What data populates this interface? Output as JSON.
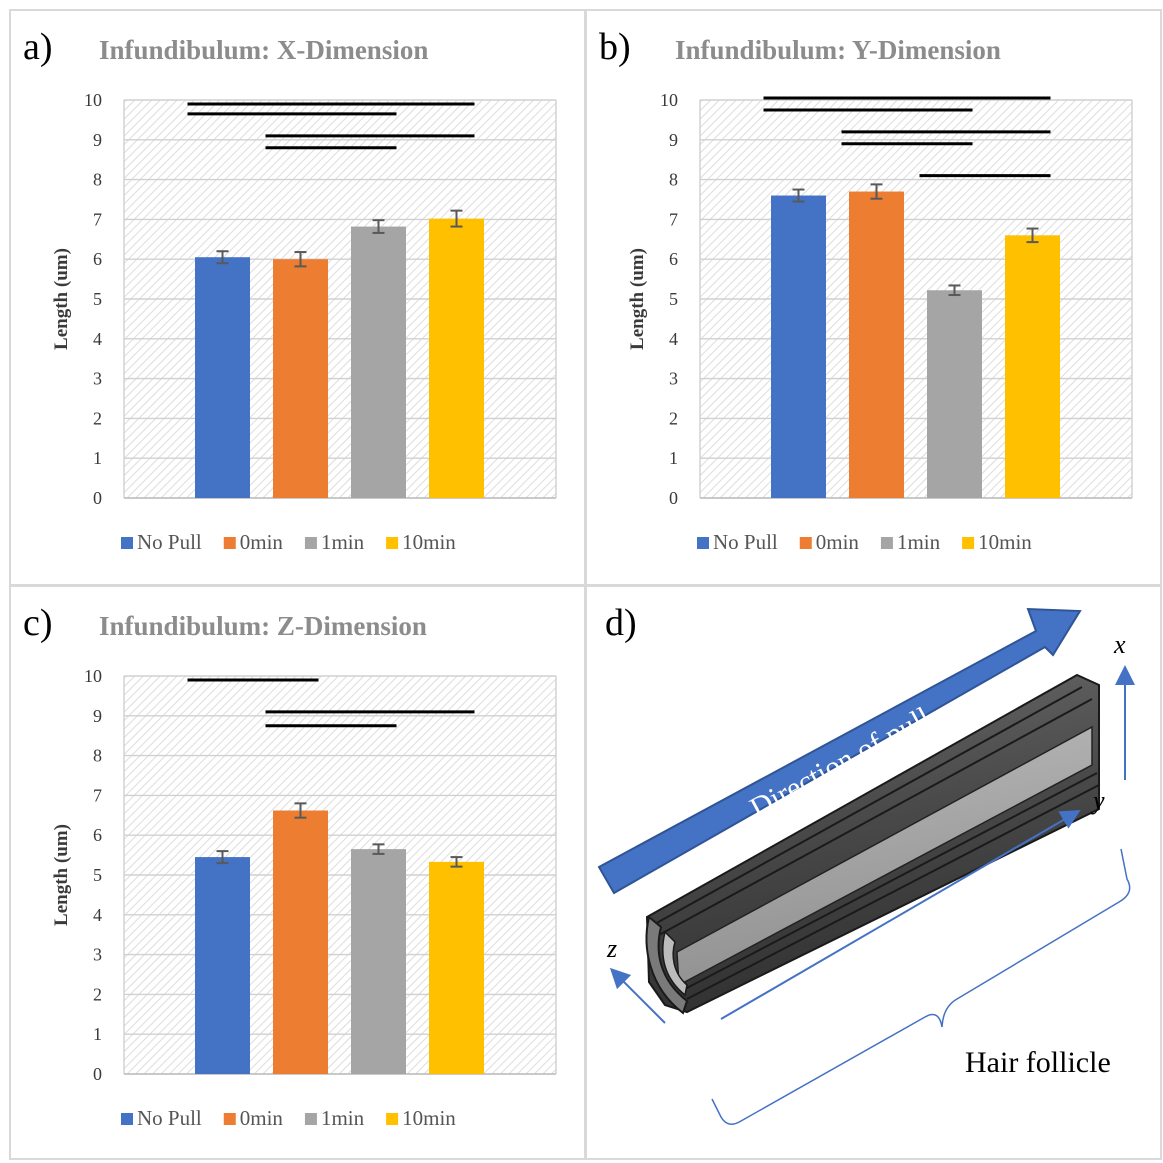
{
  "chart_data": [
    {
      "type": "bar",
      "panel_label": "a)",
      "title": "Infundibulum: X-Dimension",
      "ylabel": "Length (um)",
      "ylim": [
        0,
        10
      ],
      "yticks": [
        "0",
        "1",
        "2",
        "3",
        "4",
        "5",
        "6",
        "7",
        "8",
        "9",
        "10"
      ],
      "grid": true,
      "legend_position": "bottom",
      "series": [
        {
          "name": "No Pull",
          "color": "#4472c4",
          "value": 6.05,
          "error": 0.15
        },
        {
          "name": "0min",
          "color": "#ed7d31",
          "value": 6.0,
          "error": 0.18
        },
        {
          "name": "1min",
          "color": "#a5a5a5",
          "value": 6.82,
          "error": 0.16
        },
        {
          "name": "10min",
          "color": "#ffc000",
          "value": 7.02,
          "error": 0.2
        }
      ],
      "significance_lines": [
        {
          "y": 9.9,
          "from": 0,
          "to": 3
        },
        {
          "y": 9.65,
          "from": 0,
          "to": 2
        },
        {
          "y": 9.1,
          "from": 1,
          "to": 3
        },
        {
          "y": 8.8,
          "from": 1,
          "to": 2
        }
      ]
    },
    {
      "type": "bar",
      "panel_label": "b)",
      "title": "Infundibulum: Y-Dimension",
      "ylabel": "Length (um)",
      "ylim": [
        0,
        10
      ],
      "yticks": [
        "0",
        "1",
        "2",
        "3",
        "4",
        "5",
        "6",
        "7",
        "8",
        "9",
        "10"
      ],
      "grid": true,
      "legend_position": "bottom",
      "series": [
        {
          "name": "No Pull",
          "color": "#4472c4",
          "value": 7.6,
          "error": 0.15
        },
        {
          "name": "0min",
          "color": "#ed7d31",
          "value": 7.7,
          "error": 0.18
        },
        {
          "name": "1min",
          "color": "#a5a5a5",
          "value": 5.22,
          "error": 0.12
        },
        {
          "name": "10min",
          "color": "#ffc000",
          "value": 6.6,
          "error": 0.17
        }
      ],
      "significance_lines": [
        {
          "y": 10.05,
          "from": 0,
          "to": 3
        },
        {
          "y": 9.75,
          "from": 0,
          "to": 2
        },
        {
          "y": 9.2,
          "from": 1,
          "to": 3
        },
        {
          "y": 8.9,
          "from": 1,
          "to": 2
        },
        {
          "y": 8.1,
          "from": 2,
          "to": 3
        }
      ]
    },
    {
      "type": "bar",
      "panel_label": "c)",
      "title": "Infundibulum: Z-Dimension",
      "ylabel": "Length (um)",
      "ylim": [
        0,
        10
      ],
      "yticks": [
        "0",
        "1",
        "2",
        "3",
        "4",
        "5",
        "6",
        "7",
        "8",
        "9",
        "10"
      ],
      "grid": true,
      "legend_position": "bottom",
      "series": [
        {
          "name": "No Pull",
          "color": "#4472c4",
          "value": 5.45,
          "error": 0.15
        },
        {
          "name": "0min",
          "color": "#ed7d31",
          "value": 6.62,
          "error": 0.18
        },
        {
          "name": "1min",
          "color": "#a5a5a5",
          "value": 5.65,
          "error": 0.12
        },
        {
          "name": "10min",
          "color": "#ffc000",
          "value": 5.33,
          "error": 0.12
        }
      ],
      "significance_lines": [
        {
          "y": 9.9,
          "from": 0,
          "to": 1
        },
        {
          "y": 9.1,
          "from": 1,
          "to": 3
        },
        {
          "y": 8.75,
          "from": 1,
          "to": 2
        }
      ]
    }
  ],
  "diagram": {
    "panel_label": "d)",
    "arrow_label": "Direction of pull",
    "axis_x": "x",
    "axis_y": "y",
    "axis_z": "z",
    "caption": "Hair follicle",
    "arrow_color": "#4472c4",
    "tube_color": "#4d4d4d"
  }
}
